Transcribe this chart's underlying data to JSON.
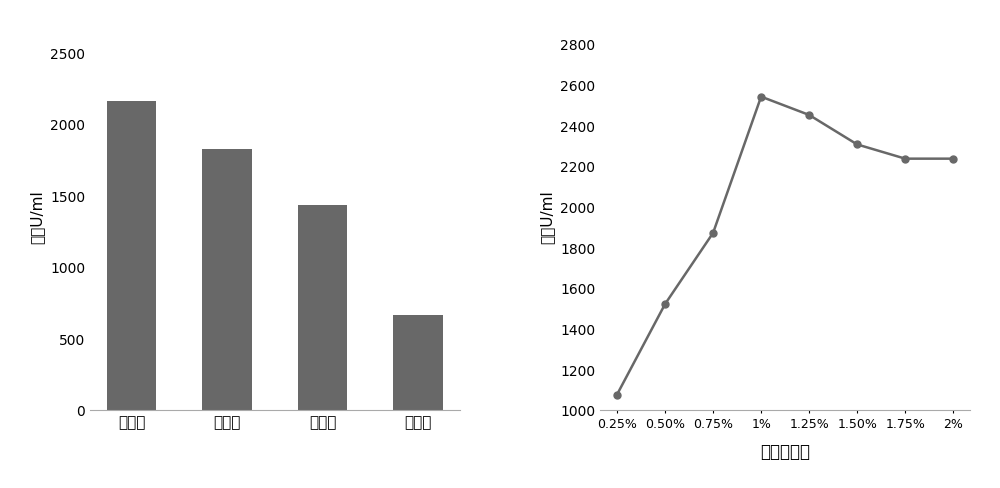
{
  "bar_categories": [
    "干酪素",
    "蛋白粉",
    "硫酸铵",
    "氯化铵"
  ],
  "bar_values": [
    2160,
    1820,
    1430,
    665
  ],
  "bar_color": "#686868",
  "bar_ylabel": "酶活U/ml",
  "bar_ylim": [
    0,
    2700
  ],
  "bar_yticks": [
    0,
    500,
    1000,
    1500,
    2000,
    2500
  ],
  "line_x_labels": [
    "0.25%",
    "0.50%",
    "0.75%",
    "1%",
    "1.25%",
    "1.50%",
    "1.75%",
    "2%"
  ],
  "line_y_values": [
    1075,
    1520,
    1870,
    2540,
    2450,
    2305,
    2235,
    2235
  ],
  "line_color": "#686868",
  "line_ylabel": "酶活U/ml",
  "line_xlabel": "干酪素含量",
  "line_ylim": [
    1000,
    2900
  ],
  "line_yticks": [
    1000,
    1200,
    1400,
    1600,
    1800,
    2000,
    2200,
    2400,
    2600,
    2800
  ],
  "background_color": "#ffffff"
}
